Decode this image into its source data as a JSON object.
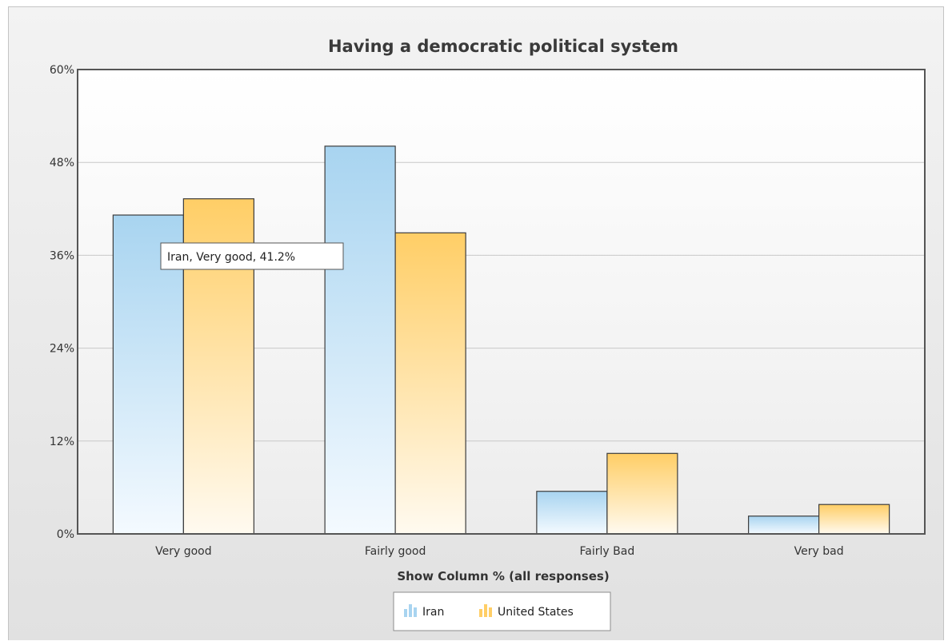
{
  "colors": {
    "iran_top": "#a8d4f0",
    "iran_bottom": "#f4faff",
    "us_top": "#ffce66",
    "us_bottom": "#fffaf0",
    "bar_stroke": "#3c3c3c",
    "grid": "#c8c8c8"
  },
  "chart_data": {
    "type": "bar",
    "title": "Having a democratic political system",
    "xlabel": "Show Column % (all responses)",
    "ylabel": "",
    "categories": [
      "Very good",
      "Fairly good",
      "Fairly Bad",
      "Very bad"
    ],
    "series": [
      {
        "name": "Iran",
        "values": [
          41.2,
          50.1,
          5.5,
          2.3
        ]
      },
      {
        "name": "United States",
        "values": [
          43.3,
          38.9,
          10.4,
          3.8
        ]
      }
    ],
    "ylim": [
      0,
      60
    ],
    "yticks": [
      "0%",
      "12%",
      "24%",
      "36%",
      "48%",
      "60%"
    ],
    "ytick_values": [
      0,
      12,
      24,
      36,
      48,
      60
    ],
    "grid": true,
    "legend_position": "bottom-center",
    "tooltip": {
      "text": "Iran, Very good, 41.2%",
      "series_index": 0,
      "category_index": 0
    }
  }
}
